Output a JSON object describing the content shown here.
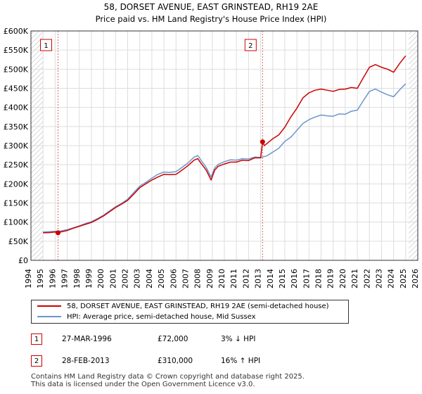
{
  "chart_data": {
    "type": "line",
    "title": "58, DORSET AVENUE, EAST GRINSTEAD, RH19 2AE",
    "subtitle": "Price paid vs. HM Land Registry's House Price Index (HPI)",
    "xlim": [
      1994,
      2026
    ],
    "ylim": [
      0,
      600000
    ],
    "x_ticks": [
      1994,
      1995,
      1996,
      1997,
      1998,
      1999,
      2000,
      2001,
      2002,
      2003,
      2004,
      2005,
      2006,
      2007,
      2008,
      2009,
      2010,
      2011,
      2012,
      2013,
      2014,
      2015,
      2016,
      2017,
      2018,
      2019,
      2020,
      2021,
      2022,
      2023,
      2024,
      2025,
      2026
    ],
    "y_ticks": [
      0,
      50000,
      100000,
      150000,
      200000,
      250000,
      300000,
      350000,
      400000,
      450000,
      500000,
      550000,
      600000
    ],
    "y_tick_labels": [
      "£0",
      "£50K",
      "£100K",
      "£150K",
      "£200K",
      "£250K",
      "£300K",
      "£350K",
      "£400K",
      "£450K",
      "£500K",
      "£550K",
      "£600K"
    ],
    "grid": true,
    "hatched_before": 1995.0,
    "hatched_after": 2025.25,
    "series": [
      {
        "name": "58, DORSET AVENUE, EAST GRINSTEAD, RH19 2AE (semi-detached house)",
        "color": "#cc0000",
        "x": [
          1995.0,
          1995.5,
          1996.0,
          1996.24,
          1996.5,
          1997.0,
          1997.5,
          1998.0,
          1998.5,
          1999.0,
          1999.5,
          2000.0,
          2000.5,
          2001.0,
          2001.5,
          2002.0,
          2002.5,
          2003.0,
          2003.5,
          2004.0,
          2004.5,
          2005.0,
          2005.5,
          2006.0,
          2006.5,
          2007.0,
          2007.5,
          2007.8,
          2008.0,
          2008.5,
          2008.9,
          2009.2,
          2009.5,
          2010.0,
          2010.5,
          2011.0,
          2011.5,
          2012.0,
          2012.5,
          2013.0,
          2013.16,
          2013.3,
          2013.5,
          2014.0,
          2014.5,
          2015.0,
          2015.5,
          2016.0,
          2016.5,
          2017.0,
          2017.5,
          2018.0,
          2018.5,
          2019.0,
          2019.5,
          2020.0,
          2020.5,
          2021.0,
          2021.5,
          2022.0,
          2022.5,
          2023.0,
          2023.5,
          2024.0,
          2024.5,
          2025.0
        ],
        "values": [
          72000,
          72500,
          74000,
          72000,
          74500,
          78000,
          84000,
          89000,
          94000,
          99000,
          107000,
          116000,
          127000,
          138000,
          147000,
          157000,
          173000,
          190000,
          200000,
          210000,
          218000,
          225000,
          224000,
          225000,
          236000,
          248000,
          262000,
          266000,
          257000,
          236000,
          210000,
          236000,
          246000,
          252000,
          257000,
          257000,
          262000,
          261000,
          268000,
          268000,
          310000,
          300000,
          305000,
          318000,
          328000,
          348000,
          375000,
          398000,
          425000,
          438000,
          445000,
          448000,
          445000,
          442000,
          447000,
          448000,
          452000,
          450000,
          478000,
          505000,
          512000,
          505000,
          500000,
          492000,
          515000,
          535000
        ]
      },
      {
        "name": "HPI: Average price, semi-detached house, Mid Sussex",
        "color": "#6a96cc",
        "x": [
          1995.0,
          1995.5,
          1996.0,
          1996.5,
          1997.0,
          1997.5,
          1998.0,
          1998.5,
          1999.0,
          1999.5,
          2000.0,
          2000.5,
          2001.0,
          2001.5,
          2002.0,
          2002.5,
          2003.0,
          2003.5,
          2004.0,
          2004.5,
          2005.0,
          2005.5,
          2006.0,
          2006.5,
          2007.0,
          2007.5,
          2007.8,
          2008.0,
          2008.5,
          2008.9,
          2009.2,
          2009.5,
          2010.0,
          2010.5,
          2011.0,
          2011.5,
          2012.0,
          2012.5,
          2013.0,
          2013.5,
          2014.0,
          2014.5,
          2015.0,
          2015.5,
          2016.0,
          2016.5,
          2017.0,
          2017.5,
          2018.0,
          2018.5,
          2019.0,
          2019.5,
          2020.0,
          2020.5,
          2021.0,
          2021.5,
          2022.0,
          2022.5,
          2023.0,
          2023.5,
          2024.0,
          2024.5,
          2025.0
        ],
        "values": [
          74000,
          75000,
          76000,
          77000,
          80000,
          85000,
          90000,
          96000,
          101000,
          109000,
          118000,
          129000,
          140000,
          149000,
          160000,
          177000,
          194000,
          204000,
          215000,
          225000,
          231000,
          230000,
          232000,
          243000,
          255000,
          270000,
          274000,
          265000,
          243000,
          218000,
          242000,
          251000,
          258000,
          263000,
          262000,
          266000,
          265000,
          270000,
          269000,
          273000,
          283000,
          293000,
          311000,
          322000,
          340000,
          358000,
          368000,
          375000,
          380000,
          378000,
          377000,
          383000,
          382000,
          390000,
          393000,
          418000,
          442000,
          448000,
          440000,
          433000,
          428000,
          446000,
          462000
        ]
      }
    ],
    "annotations": [
      {
        "label": "1",
        "x": 1996.24,
        "value": 72000
      },
      {
        "label": "2",
        "x": 2013.16,
        "value": 310000
      }
    ]
  },
  "legend": {
    "red_label": "58, DORSET AVENUE, EAST GRINSTEAD, RH19 2AE (semi-detached house)",
    "blue_label": "HPI: Average price, semi-detached house, Mid Sussex"
  },
  "sales": [
    {
      "num": "1",
      "date": "27-MAR-1996",
      "price": "£72,000",
      "hpi": "3% ↓ HPI"
    },
    {
      "num": "2",
      "date": "28-FEB-2013",
      "price": "£310,000",
      "hpi": "16% ↑ HPI"
    }
  ],
  "footer": {
    "line1": "Contains HM Land Registry data © Crown copyright and database right 2025.",
    "line2": "This data is licensed under the Open Government Licence v3.0."
  }
}
